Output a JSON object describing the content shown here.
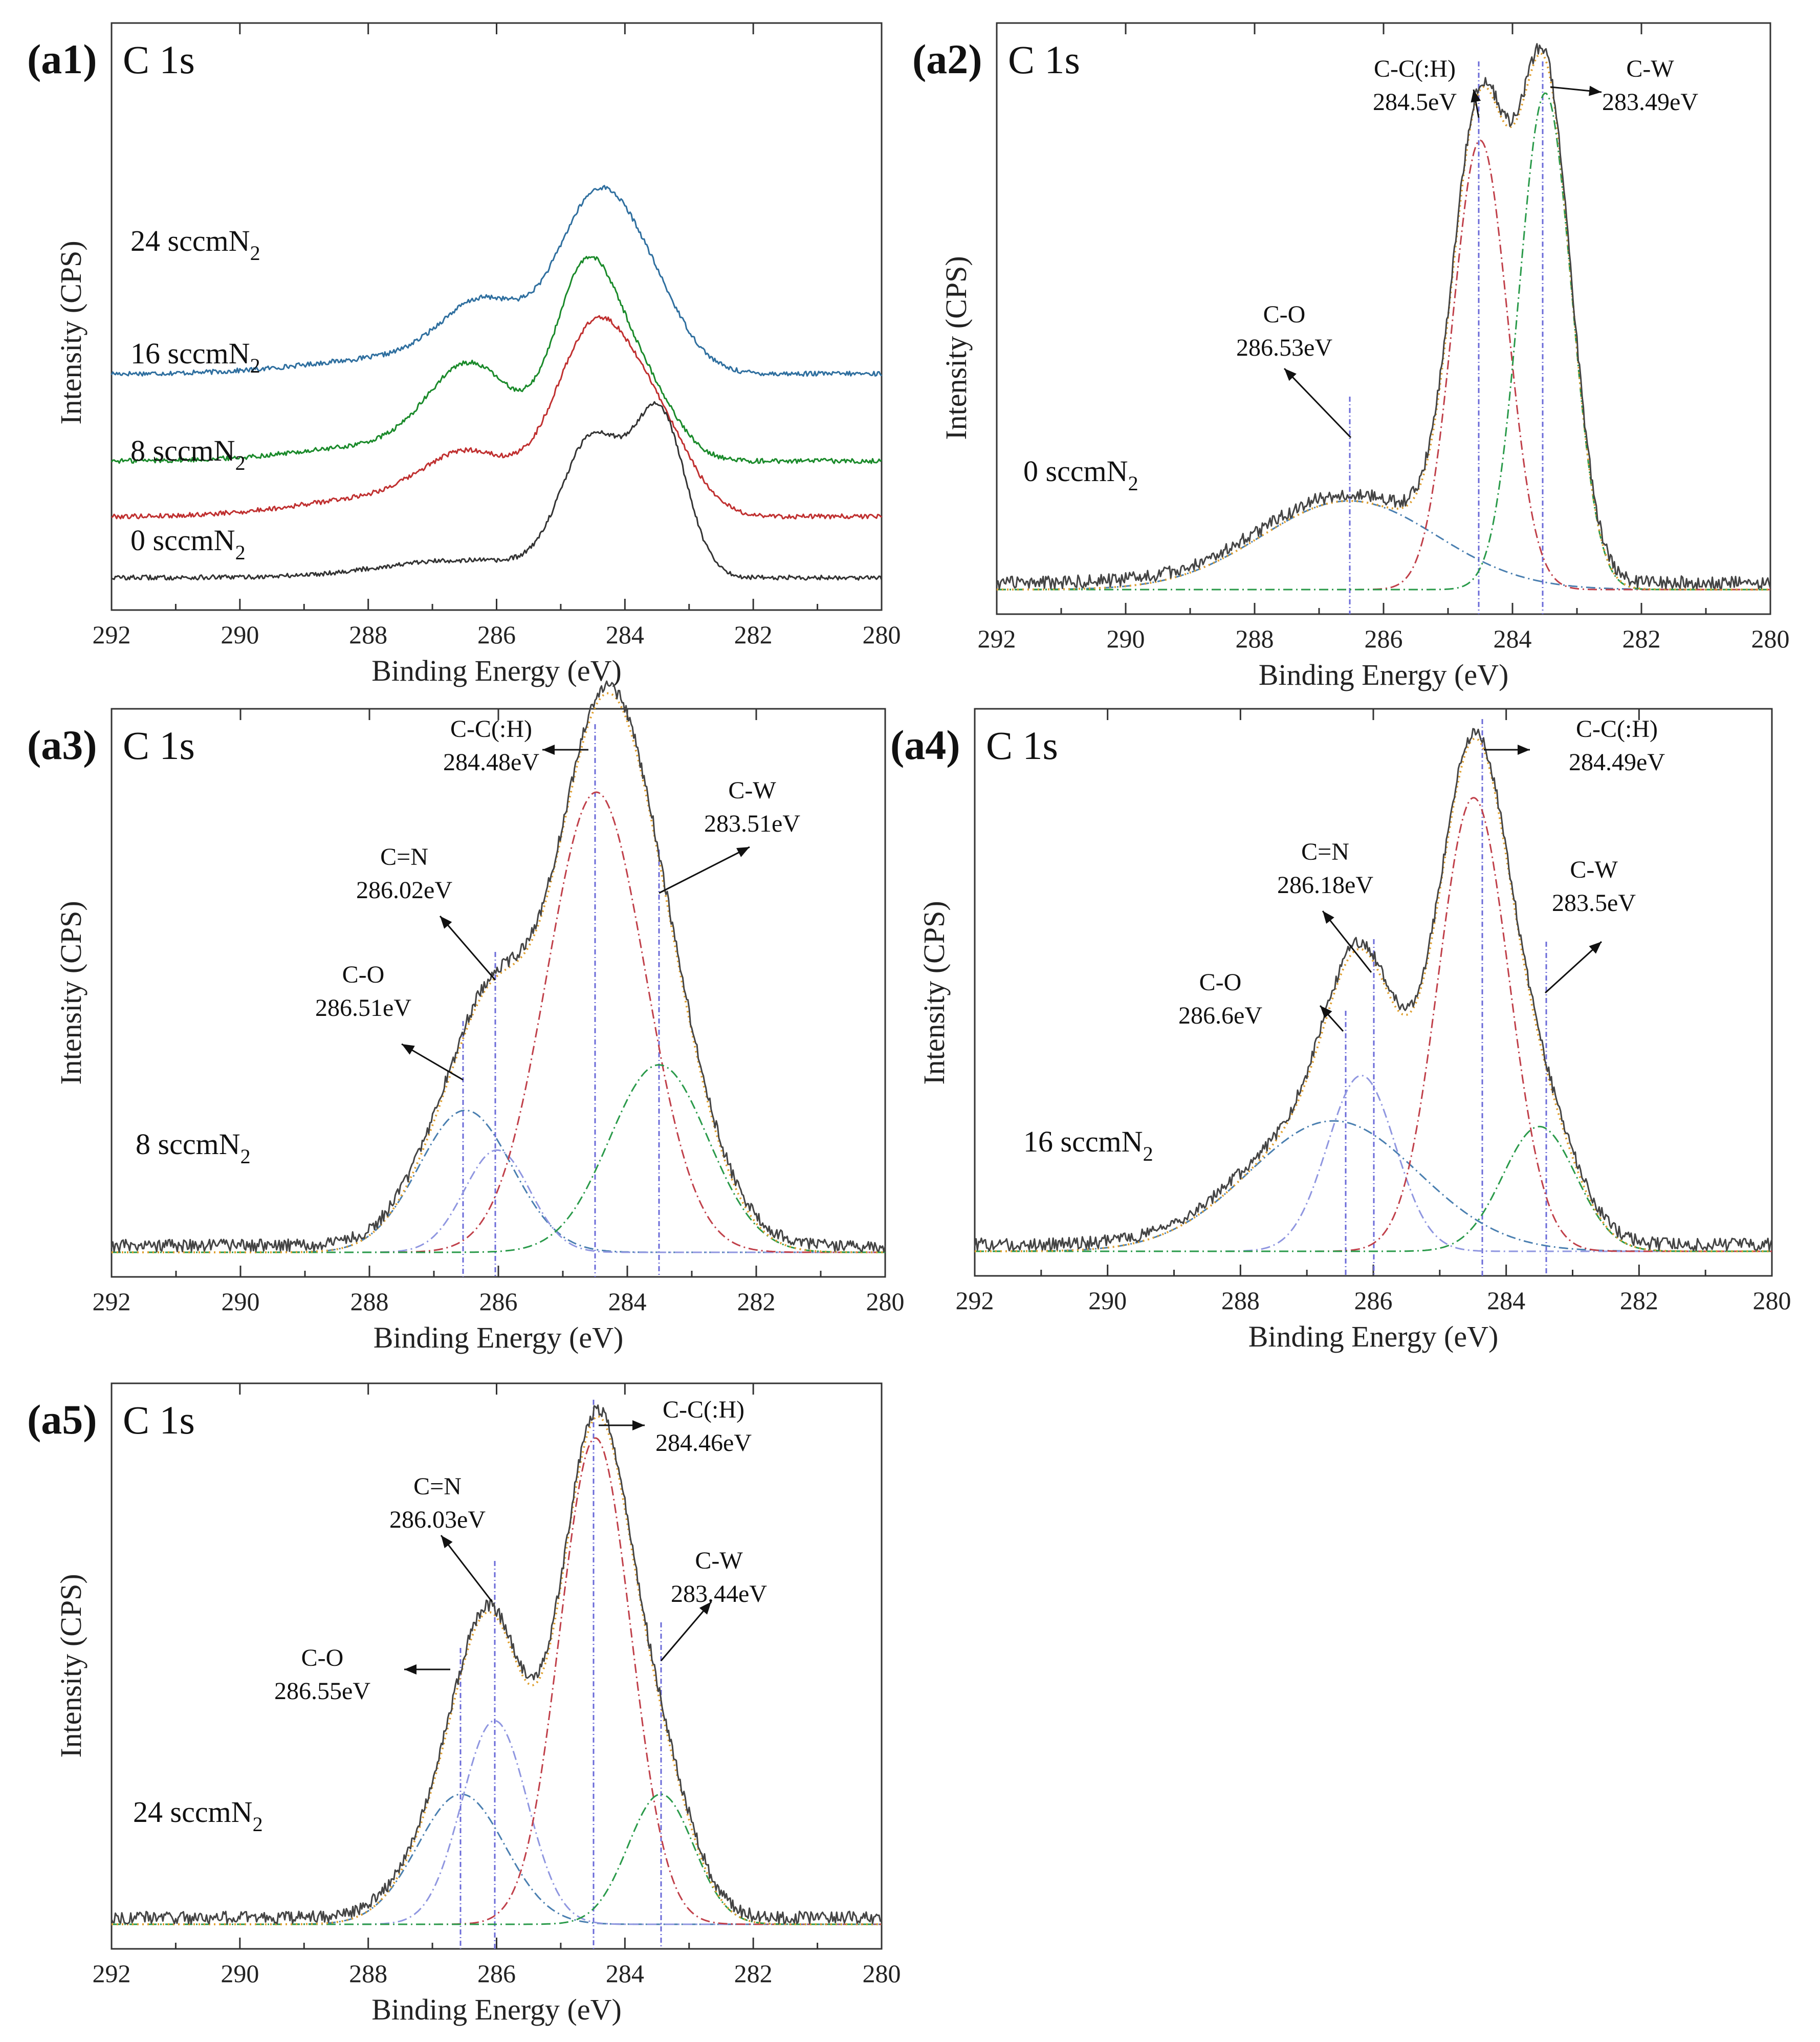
{
  "chart_data": [
    {
      "id": "a1",
      "type": "line",
      "panel_label": "(a1)",
      "title": "C 1s",
      "xlabel": "Binding Energy (eV)",
      "ylabel": "Intensity (CPS)",
      "xlim": [
        292,
        280
      ],
      "xticks": [
        "292",
        "290",
        "288",
        "286",
        "284",
        "282",
        "280"
      ],
      "colors": {
        "0": "#333333",
        "8": "#c03030",
        "16": "#1a8a2a",
        "24": "#2f6f9f"
      },
      "series": [
        {
          "name": "24 sccmN2",
          "base": 285,
          "color": "#2f6f9f",
          "sample": {
            "main": "24 sccmN",
            "sub": "2"
          },
          "peaks": [
            {
              "c": 284.48,
              "a": 205,
              "w": 0.6
            },
            {
              "c": 283.6,
              "a": 80,
              "w": 0.55
            },
            {
              "c": 286.2,
              "a": 80,
              "w": 0.65
            },
            {
              "c": 287.5,
              "a": 20,
              "w": 1.4
            }
          ]
        },
        {
          "name": "16 sccmN2",
          "base": 175,
          "color": "#1a8a2a",
          "sample": {
            "main": "16 sccmN",
            "sub": "2"
          },
          "peaks": [
            {
              "c": 284.6,
              "a": 235,
              "w": 0.5
            },
            {
              "c": 283.7,
              "a": 85,
              "w": 0.5
            },
            {
              "c": 286.4,
              "a": 110,
              "w": 0.65
            },
            {
              "c": 287.6,
              "a": 20,
              "w": 1.4
            }
          ]
        },
        {
          "name": "8 sccmN2",
          "base": 105,
          "color": "#c03030",
          "sample": {
            "main": "8 sccmN",
            "sub": "2"
          },
          "peaks": [
            {
              "c": 284.5,
              "a": 225,
              "w": 0.6
            },
            {
              "c": 283.5,
              "a": 100,
              "w": 0.55
            },
            {
              "c": 286.4,
              "a": 65,
              "w": 0.7
            },
            {
              "c": 287.6,
              "a": 25,
              "w": 1.4
            }
          ]
        },
        {
          "name": "0 sccmN2",
          "base": 28,
          "color": "#333333",
          "sample": {
            "main": "0 sccmN",
            "sub": "2"
          },
          "peaks": [
            {
              "c": 284.5,
              "a": 170,
              "w": 0.48
            },
            {
              "c": 283.45,
              "a": 200,
              "w": 0.4
            },
            {
              "c": 286.5,
              "a": 22,
              "w": 1.3
            }
          ]
        }
      ]
    },
    {
      "id": "a2",
      "type": "line",
      "panel_label": "(a2)",
      "title": "C 1s",
      "xlabel": "Binding Energy (eV)",
      "ylabel": "Intensity (CPS)",
      "xlim": [
        292,
        280
      ],
      "xticks": [
        "292",
        "290",
        "288",
        "286",
        "284",
        "282",
        "280"
      ],
      "sample": {
        "main": "0 sccmN",
        "sub": "2"
      },
      "components": [
        {
          "name": "C-O",
          "energy": "286.53eV",
          "center": 286.53,
          "height": 0.15,
          "fwhm": 3.2,
          "color": "#4a7fb0"
        },
        {
          "name": "C-C(:H)",
          "energy": "284.5eV",
          "center": 284.5,
          "height": 0.76,
          "fwhm": 1.0,
          "color": "#c0404a"
        },
        {
          "name": "C-W",
          "energy": "283.49eV",
          "center": 283.49,
          "height": 0.84,
          "fwhm": 0.95,
          "color": "#2a9a4a"
        }
      ]
    },
    {
      "id": "a3",
      "type": "line",
      "panel_label": "(a3)",
      "title": "C 1s",
      "xlabel": "Binding Energy (eV)",
      "ylabel": "Intensity (CPS)",
      "xlim": [
        292,
        280
      ],
      "xticks": [
        "292",
        "290",
        "288",
        "286",
        "284",
        "282",
        "280"
      ],
      "sample": {
        "main": "8 sccmN",
        "sub": "2"
      },
      "components": [
        {
          "name": "C-O",
          "energy": "286.51eV",
          "center": 286.51,
          "height": 0.25,
          "fwhm": 1.7,
          "color": "#4a7fb0"
        },
        {
          "name": "C=N",
          "energy": "286.02eV",
          "center": 286.02,
          "height": 0.18,
          "fwhm": 1.2,
          "color": "#8f96e0"
        },
        {
          "name": "C-C(:H)",
          "energy": "284.48eV",
          "center": 284.48,
          "height": 0.81,
          "fwhm": 1.8,
          "color": "#c0404a"
        },
        {
          "name": "C-W",
          "energy": "283.51eV",
          "center": 283.51,
          "height": 0.33,
          "fwhm": 1.8,
          "color": "#2a9a4a"
        }
      ]
    },
    {
      "id": "a4",
      "type": "line",
      "panel_label": "(a4)",
      "title": "C 1s",
      "xlabel": "Binding Energy (eV)",
      "ylabel": "Intensity (CPS)",
      "xlim": [
        292,
        280
      ],
      "xticks": [
        "292",
        "290",
        "288",
        "286",
        "284",
        "282",
        "280"
      ],
      "sample": {
        "main": "16 sccmN",
        "sub": "2"
      },
      "components": [
        {
          "name": "C-O",
          "energy": "286.6eV",
          "center": 286.6,
          "height": 0.23,
          "fwhm": 3.0,
          "color": "#4a7fb0"
        },
        {
          "name": "C=N",
          "energy": "286.18eV",
          "center": 286.18,
          "height": 0.31,
          "fwhm": 1.2,
          "color": "#8f96e0"
        },
        {
          "name": "C-C(:H)",
          "energy": "284.49eV",
          "center": 284.49,
          "height": 0.8,
          "fwhm": 1.25,
          "color": "#c0404a"
        },
        {
          "name": "C-W",
          "energy": "283.5eV",
          "center": 283.5,
          "height": 0.22,
          "fwhm": 1.3,
          "color": "#2a9a4a"
        }
      ]
    },
    {
      "id": "a5",
      "type": "line",
      "panel_label": "(a5)",
      "title": "C 1s",
      "xlabel": "Binding Energy (eV)",
      "ylabel": "Intensity (CPS)",
      "xlim": [
        292,
        280
      ],
      "xticks": [
        "292",
        "290",
        "288",
        "286",
        "284",
        "282",
        "280"
      ],
      "sample": {
        "main": "24 sccmN",
        "sub": "2"
      },
      "components": [
        {
          "name": "C-O",
          "energy": "286.55eV",
          "center": 286.55,
          "height": 0.23,
          "fwhm": 1.6,
          "color": "#4a7fb0"
        },
        {
          "name": "C=N",
          "energy": "286.03eV",
          "center": 286.03,
          "height": 0.36,
          "fwhm": 1.2,
          "color": "#8f96e0"
        },
        {
          "name": "C-C(:H)",
          "energy": "284.46eV",
          "center": 284.46,
          "height": 0.86,
          "fwhm": 1.3,
          "color": "#c0404a"
        },
        {
          "name": "C-W",
          "energy": "283.44eV",
          "center": 283.44,
          "height": 0.23,
          "fwhm": 1.2,
          "color": "#2a9a4a"
        }
      ]
    }
  ]
}
